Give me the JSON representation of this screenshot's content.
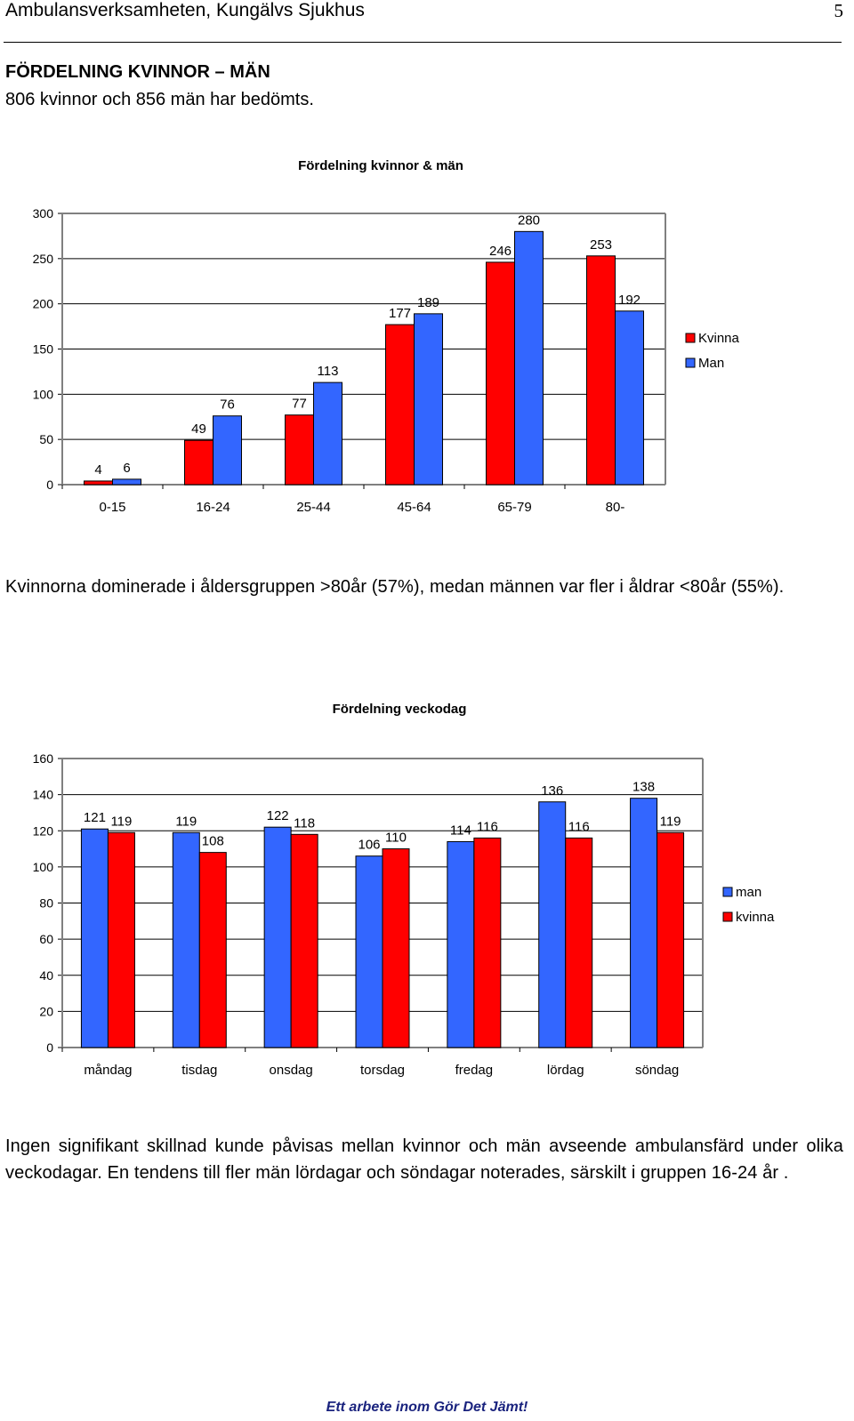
{
  "header": {
    "title": "Ambulansverksamheten, Kungälvs Sjukhus",
    "page": "5"
  },
  "section": {
    "title": "FÖRDELNING KVINNOR – MÄN",
    "subtitle": "806 kvinnor och 856 män har bedömts."
  },
  "paragraph1": "Kvinnorna dominerade i åldersgruppen >80år (57%), medan männen var fler i åldrar <80år (55%).",
  "paragraph2": "Ingen signifikant skillnad kunde påvisas mellan kvinnor och män avseende ambulansfärd under olika veckodagar. En tendens till fler män lördagar och söndagar noterades, särskilt i gruppen 16-24 år .",
  "footer": "Ett arbete inom Gör Det Jämt!",
  "colors": {
    "red": "#ff0000",
    "blue": "#3366ff"
  },
  "chart_data": [
    {
      "type": "bar",
      "title": "Fördelning kvinnor & män",
      "categories": [
        "0-15",
        "16-24",
        "25-44",
        "45-64",
        "65-79",
        "80-"
      ],
      "series": [
        {
          "name": "Kvinna",
          "color": "#ff0000",
          "values": [
            4,
            49,
            77,
            177,
            246,
            253
          ]
        },
        {
          "name": "Man",
          "color": "#3366ff",
          "values": [
            6,
            76,
            113,
            189,
            280,
            192
          ]
        }
      ],
      "ylim": [
        0,
        300
      ],
      "yticks": [
        0,
        50,
        100,
        150,
        200,
        250,
        300
      ],
      "grid": true,
      "legend": "right"
    },
    {
      "type": "bar",
      "title": "Fördelning veckodag",
      "categories": [
        "måndag",
        "tisdag",
        "onsdag",
        "torsdag",
        "fredag",
        "lördag",
        "söndag"
      ],
      "series": [
        {
          "name": "man",
          "color": "#3366ff",
          "values": [
            121,
            119,
            122,
            106,
            114,
            136,
            138
          ]
        },
        {
          "name": "kvinna",
          "color": "#ff0000",
          "values": [
            119,
            108,
            118,
            110,
            116,
            116,
            119
          ]
        }
      ],
      "ylim": [
        0,
        160
      ],
      "yticks": [
        0,
        20,
        40,
        60,
        80,
        100,
        120,
        140,
        160
      ],
      "grid": true,
      "legend": "right"
    }
  ]
}
